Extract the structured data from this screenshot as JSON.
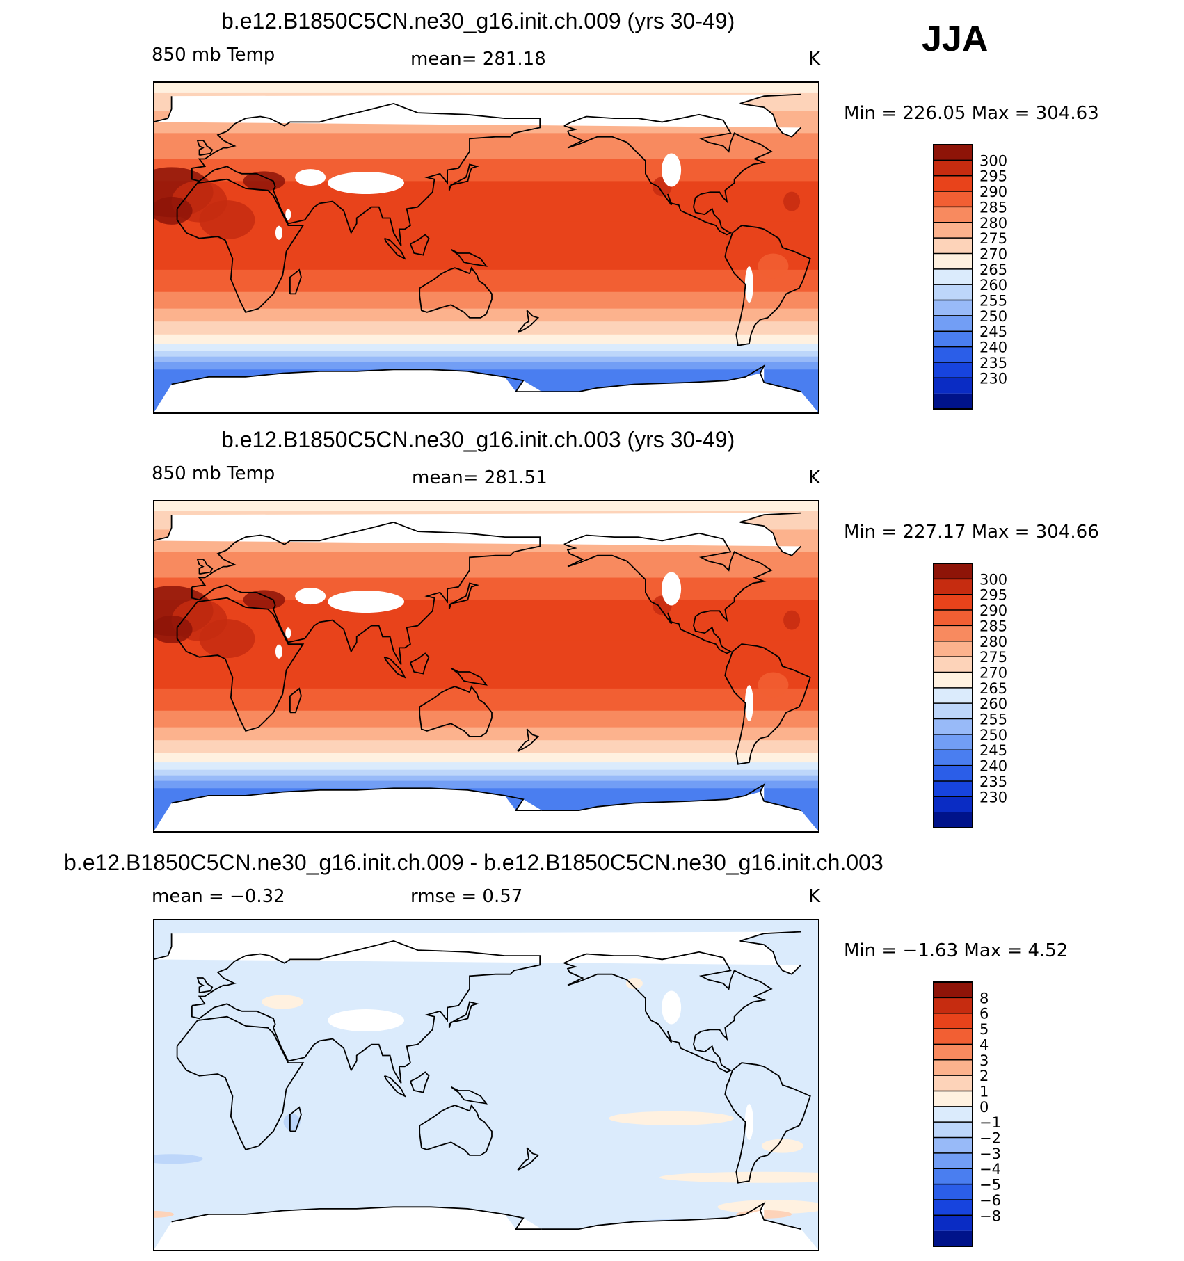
{
  "season": "JJA",
  "colors": {
    "abs_palette": [
      "#00138a",
      "#0a2cc4",
      "#1744de",
      "#2b5ee8",
      "#4a7ef0",
      "#729ef5",
      "#98baf8",
      "#bdd6fa",
      "#dbebfc",
      "#fff1e0",
      "#fdd3b9",
      "#fcb28d",
      "#f88a5f",
      "#f25f33",
      "#e8431b",
      "#c62c10",
      "#8e1408"
    ],
    "diff_palette": [
      "#00138a",
      "#0a2cc4",
      "#1744de",
      "#2b5ee8",
      "#4a7ef0",
      "#729ef5",
      "#98baf8",
      "#bdd6fa",
      "#dbebfc",
      "#fff1e0",
      "#fdd3b9",
      "#fcb28d",
      "#f88a5f",
      "#f25f33",
      "#e8431b",
      "#c62c10",
      "#8e1408"
    ]
  },
  "panels": [
    {
      "title": "b.e12.B1850C5CN.ne30_g16.init.ch.009 (yrs 30-49)",
      "left_label": "850 mb Temp",
      "center_label": "mean=  281.18",
      "units": "K",
      "minmax": "Min  =  226.05  Max  =  304.63"
    },
    {
      "title": "b.e12.B1850C5CN.ne30_g16.init.ch.003 (yrs 30-49)",
      "left_label": "850 mb Temp",
      "center_label": "mean=  281.51",
      "units": "K",
      "minmax": "Min  =  227.17  Max  =  304.66"
    },
    {
      "title": "b.e12.B1850C5CN.ne30_g16.init.ch.009 - b.e12.B1850C5CN.ne30_g16.init.ch.003",
      "left_label": "mean  =     −0.32",
      "center_label": "rmse  =      0.57",
      "units": "K",
      "minmax": "Min  =     −1.63  Max  =      4.52"
    }
  ],
  "chart_data": [
    {
      "type": "heatmap",
      "title": "b.e12.B1850C5CN.ne30_g16.init.ch.009 (yrs 30-49)",
      "variable": "850 mb Temp",
      "units": "K",
      "mean": 281.18,
      "min": 226.05,
      "max": 304.63,
      "colorbar_levels": [
        "300",
        "295",
        "290",
        "285",
        "280",
        "275",
        "270",
        "265",
        "260",
        "255",
        "250",
        "245",
        "240",
        "235",
        "230"
      ],
      "colorbar_range": [
        225,
        305
      ]
    },
    {
      "type": "heatmap",
      "title": "b.e12.B1850C5CN.ne30_g16.init.ch.003 (yrs 30-49)",
      "variable": "850 mb Temp",
      "units": "K",
      "mean": 281.51,
      "min": 227.17,
      "max": 304.66,
      "colorbar_levels": [
        "300",
        "295",
        "290",
        "285",
        "280",
        "275",
        "270",
        "265",
        "260",
        "255",
        "250",
        "245",
        "240",
        "235",
        "230"
      ],
      "colorbar_range": [
        225,
        305
      ]
    },
    {
      "type": "heatmap",
      "title": "b.e12.B1850C5CN.ne30_g16.init.ch.009 - b.e12.B1850C5CN.ne30_g16.init.ch.003",
      "units": "K",
      "mean": -0.32,
      "rmse": 0.57,
      "min": -1.63,
      "max": 4.52,
      "colorbar_levels": [
        "8",
        "6",
        "5",
        "4",
        "3",
        "2",
        "1",
        "0",
        "−1",
        "−2",
        "−3",
        "−4",
        "−5",
        "−6",
        "−8"
      ]
    }
  ]
}
